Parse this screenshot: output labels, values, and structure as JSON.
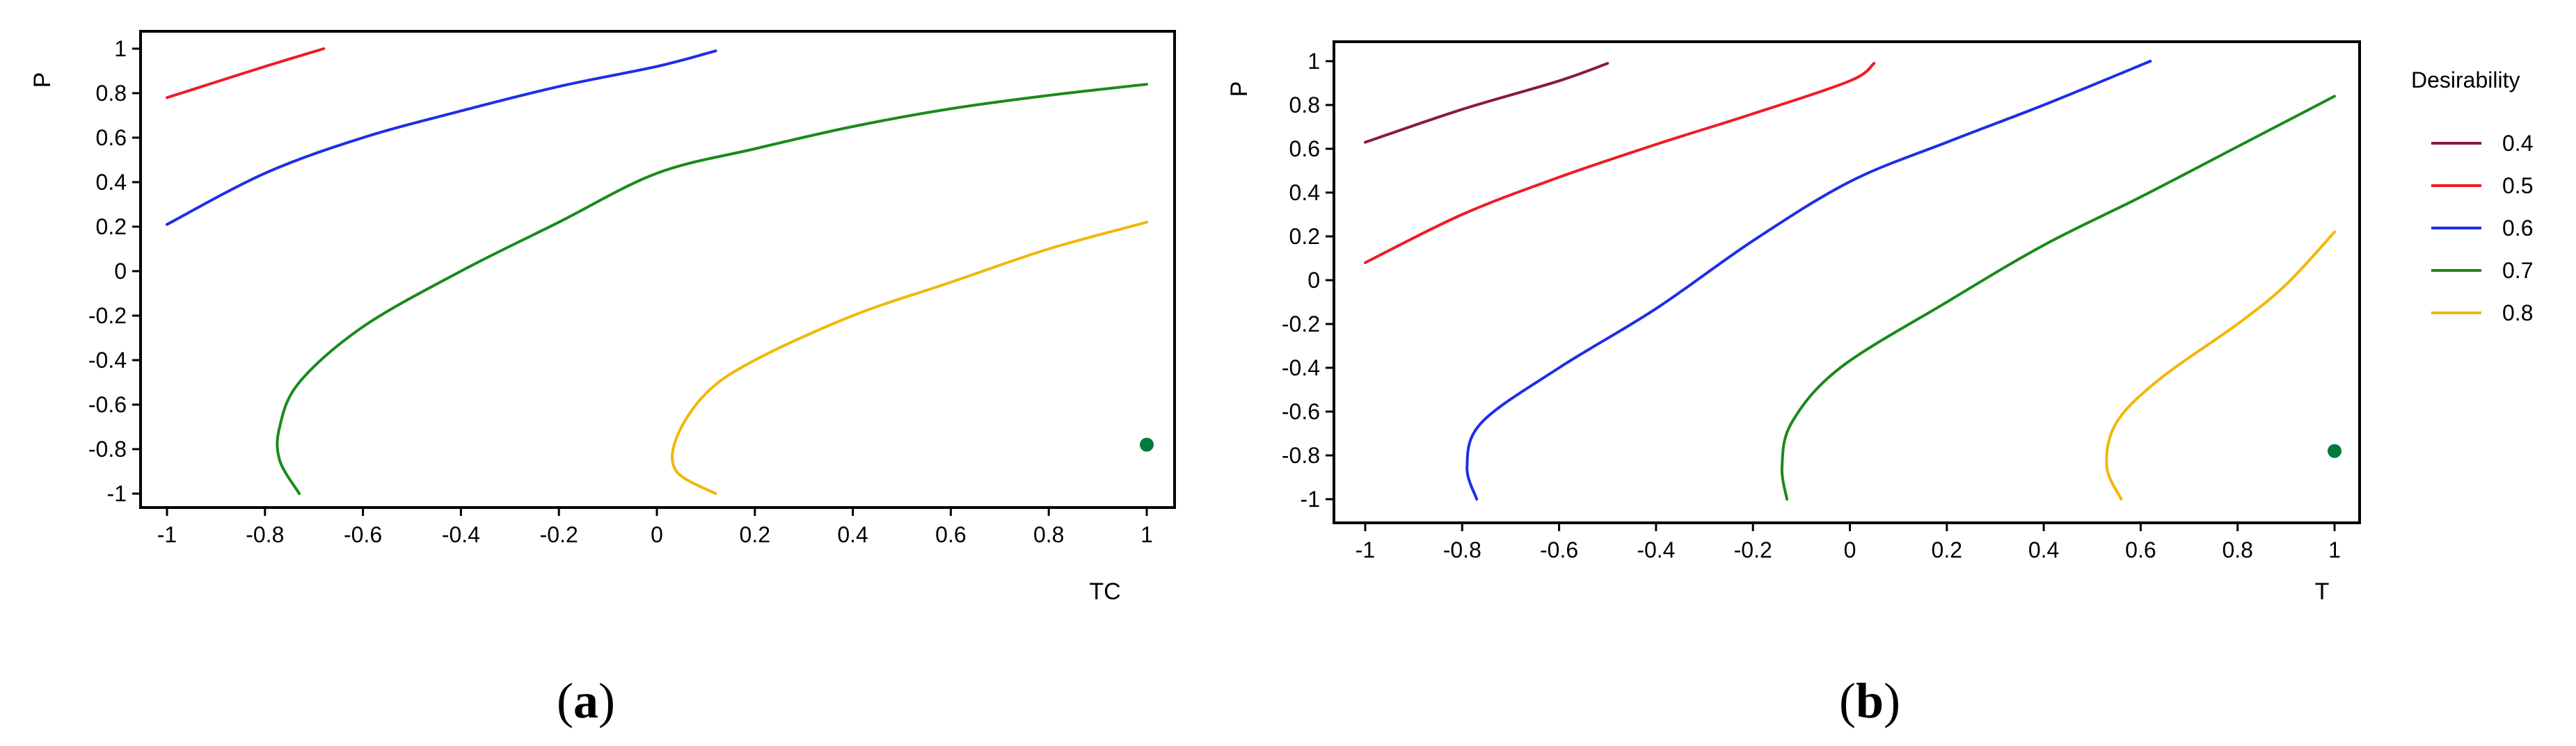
{
  "colors": {
    "0.4": "#8b1a3c",
    "0.5": "#ee1c24",
    "0.6": "#1e2ee6",
    "0.7": "#1a8a1a",
    "0.8": "#f2b705",
    "optimum": "#007a3d"
  },
  "legend": {
    "title": "Desirability",
    "entries": [
      "0.4",
      "0.5",
      "0.6",
      "0.7",
      "0.8"
    ]
  },
  "chart_data": [
    {
      "type": "line",
      "panel": "a",
      "caption": "a",
      "xlabel": "TC",
      "ylabel": "P",
      "xlim": [
        -1,
        1
      ],
      "ylim": [
        -1,
        1
      ],
      "xticks": [
        "-1",
        "-0.8",
        "-0.6",
        "-0.4",
        "-0.2",
        "0",
        "0.2",
        "0.4",
        "0.6",
        "0.8",
        "1"
      ],
      "yticks": [
        "1",
        "0.8",
        "0.6",
        "0.4",
        "0.2",
        "0",
        "-0.2",
        "-0.4",
        "-0.6",
        "-0.8",
        "-1"
      ],
      "series": [
        {
          "name": "0.5",
          "points": [
            [
              -1,
              0.78
            ],
            [
              -0.9,
              0.85
            ],
            [
              -0.8,
              0.92
            ],
            [
              -0.68,
              1.0
            ]
          ]
        },
        {
          "name": "0.6",
          "points": [
            [
              -1,
              0.21
            ],
            [
              -0.8,
              0.44
            ],
            [
              -0.6,
              0.6
            ],
            [
              -0.4,
              0.72
            ],
            [
              -0.2,
              0.83
            ],
            [
              0,
              0.92
            ],
            [
              0.12,
              0.99
            ]
          ]
        },
        {
          "name": "0.7",
          "points": [
            [
              -0.73,
              -1.0
            ],
            [
              -0.77,
              -0.85
            ],
            [
              -0.77,
              -0.7
            ],
            [
              -0.73,
              -0.5
            ],
            [
              -0.6,
              -0.25
            ],
            [
              -0.4,
              0.0
            ],
            [
              -0.2,
              0.22
            ],
            [
              0,
              0.44
            ],
            [
              0.2,
              0.55
            ],
            [
              0.4,
              0.65
            ],
            [
              0.6,
              0.73
            ],
            [
              0.8,
              0.79
            ],
            [
              1.0,
              0.84
            ]
          ]
        },
        {
          "name": "0.8",
          "points": [
            [
              0.12,
              -1.0
            ],
            [
              0.04,
              -0.9
            ],
            [
              0.04,
              -0.75
            ],
            [
              0.1,
              -0.55
            ],
            [
              0.2,
              -0.4
            ],
            [
              0.4,
              -0.2
            ],
            [
              0.6,
              -0.05
            ],
            [
              0.8,
              0.1
            ],
            [
              1.0,
              0.22
            ]
          ]
        }
      ],
      "optimum": {
        "x": 1.0,
        "y": -0.78
      }
    },
    {
      "type": "line",
      "panel": "b",
      "caption": "b",
      "xlabel": "T",
      "ylabel": "P",
      "xlim": [
        -1,
        1
      ],
      "ylim": [
        -1,
        1
      ],
      "xticks": [
        "-1",
        "-0.8",
        "-0.6",
        "-0.4",
        "-0.2",
        "0",
        "0.2",
        "0.4",
        "0.6",
        "0.8",
        "1"
      ],
      "yticks": [
        "1",
        "0.8",
        "0.6",
        "0.4",
        "0.2",
        "0",
        "-0.2",
        "-0.4",
        "-0.6",
        "-0.8",
        "-1"
      ],
      "series": [
        {
          "name": "0.4",
          "points": [
            [
              -1,
              0.63
            ],
            [
              -0.8,
              0.78
            ],
            [
              -0.6,
              0.91
            ],
            [
              -0.5,
              0.99
            ]
          ]
        },
        {
          "name": "0.5",
          "points": [
            [
              -1,
              0.08
            ],
            [
              -0.8,
              0.3
            ],
            [
              -0.6,
              0.47
            ],
            [
              -0.4,
              0.62
            ],
            [
              -0.2,
              0.76
            ],
            [
              0,
              0.91
            ],
            [
              0.05,
              0.99
            ]
          ]
        },
        {
          "name": "0.6",
          "points": [
            [
              -0.77,
              -1.0
            ],
            [
              -0.79,
              -0.85
            ],
            [
              -0.76,
              -0.65
            ],
            [
              -0.6,
              -0.4
            ],
            [
              -0.4,
              -0.13
            ],
            [
              -0.2,
              0.18
            ],
            [
              0,
              0.45
            ],
            [
              0.2,
              0.63
            ],
            [
              0.4,
              0.8
            ],
            [
              0.62,
              1.0
            ]
          ]
        },
        {
          "name": "0.7",
          "points": [
            [
              -0.13,
              -1.0
            ],
            [
              -0.14,
              -0.85
            ],
            [
              -0.12,
              -0.65
            ],
            [
              -0.02,
              -0.4
            ],
            [
              0.2,
              -0.1
            ],
            [
              0.4,
              0.16
            ],
            [
              0.6,
              0.38
            ],
            [
              0.8,
              0.61
            ],
            [
              1.0,
              0.84
            ]
          ]
        },
        {
          "name": "0.8",
          "points": [
            [
              0.56,
              -1.0
            ],
            [
              0.53,
              -0.85
            ],
            [
              0.55,
              -0.65
            ],
            [
              0.64,
              -0.45
            ],
            [
              0.8,
              -0.2
            ],
            [
              0.9,
              -0.02
            ],
            [
              1.0,
              0.22
            ]
          ]
        }
      ],
      "optimum": {
        "x": 1.0,
        "y": -0.78
      }
    }
  ]
}
